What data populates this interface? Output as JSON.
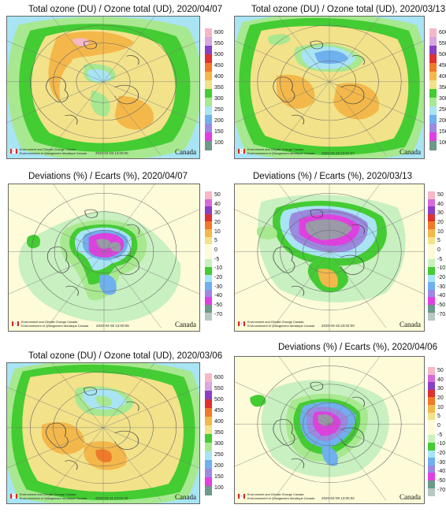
{
  "panels": [
    {
      "title": "Total ozone (DU) / Ozone total (UD), 2020/04/07",
      "kind": "ozone",
      "timestamp": "2020-04-08 13:00:06",
      "credit_lines": [
        "Environment and Climate Change Canada",
        "Environnement et Changement climatique Canada"
      ],
      "wordmark": "Canada",
      "pattern": "ozone_0407"
    },
    {
      "title": "Total ozone (DU) / Ozone total (UD), 2020/03/13",
      "kind": "ozone",
      "timestamp": "2020-03-18 23:01:07",
      "credit_lines": [
        "Environment and Climate Change Canada",
        "Environnement et Changement climatique Canada"
      ],
      "wordmark": "Canada",
      "pattern": "ozone_0313"
    },
    {
      "title": "Deviations (%) / Ecarts (%), 2020/04/07",
      "kind": "deviation",
      "timestamp": "2020-04-08 13:00:06",
      "credit_lines": [
        "Environment and Climate Change Canada",
        "Environnement et Changement climatique Canada"
      ],
      "wordmark": "Canada",
      "pattern": "dev_0407"
    },
    {
      "title": "Deviations (%) / Ecarts (%), 2020/03/13",
      "kind": "deviation",
      "timestamp": "2020-03-18 23:02:00",
      "credit_lines": [
        "Environment and Climate Change Canada",
        "Environnement et Changement climatique Canada"
      ],
      "wordmark": "Canada",
      "pattern": "dev_0313"
    },
    {
      "title": "Total ozone (DU) / Ozone total (UD), 2020/03/06",
      "kind": "ozone",
      "timestamp": "2020-03-11 23:01:40",
      "credit_lines": [
        "Environment and Climate Change Canada",
        "Environnement et Changement climatique Canada"
      ],
      "wordmark": "Canada",
      "pattern": "ozone_0306"
    },
    {
      "title": "Deviations (%) / Ecarts (%), 2020/04/06",
      "kind": "deviation",
      "timestamp": "2020-04-08 13:00:32",
      "credit_lines": [
        "Environment and Climate Change Canada",
        "Environnement et Changement climatique Canada"
      ],
      "wordmark": "Canada",
      "pattern": "dev_0406"
    }
  ],
  "legends": {
    "ozone": {
      "labels": [
        "600",
        "550",
        "500",
        "450",
        "400",
        "350",
        "300",
        "250",
        "200",
        "150",
        "100"
      ],
      "colors": [
        "#f4b8c8",
        "#d9a6e0",
        "#8a3fc4",
        "#e03030",
        "#f07a2a",
        "#f4b84a",
        "#f2e28a",
        "#44cc33",
        "#a8e890",
        "#a8e4f4",
        "#6fb0ee",
        "#9b8ae0",
        "#e040e0",
        "#6a9a8a"
      ]
    },
    "deviation": {
      "labels": [
        "50",
        "40",
        "30",
        "20",
        "10",
        "5",
        "0",
        "-5",
        "-10",
        "-20",
        "-30",
        "-40",
        "-50",
        "-70"
      ],
      "colors": [
        "#f4b8c8",
        "#d86ad8",
        "#8a3fc4",
        "#e03030",
        "#f07a2a",
        "#f4b84a",
        "#f2e28a",
        "#fdfbd8",
        "#fdfbd8",
        "#c8f0c0",
        "#44cc33",
        "#a8e4f4",
        "#6fb0ee",
        "#9b8ae0",
        "#e040e0",
        "#6a9a8a",
        "#b8c8c0"
      ]
    }
  }
}
